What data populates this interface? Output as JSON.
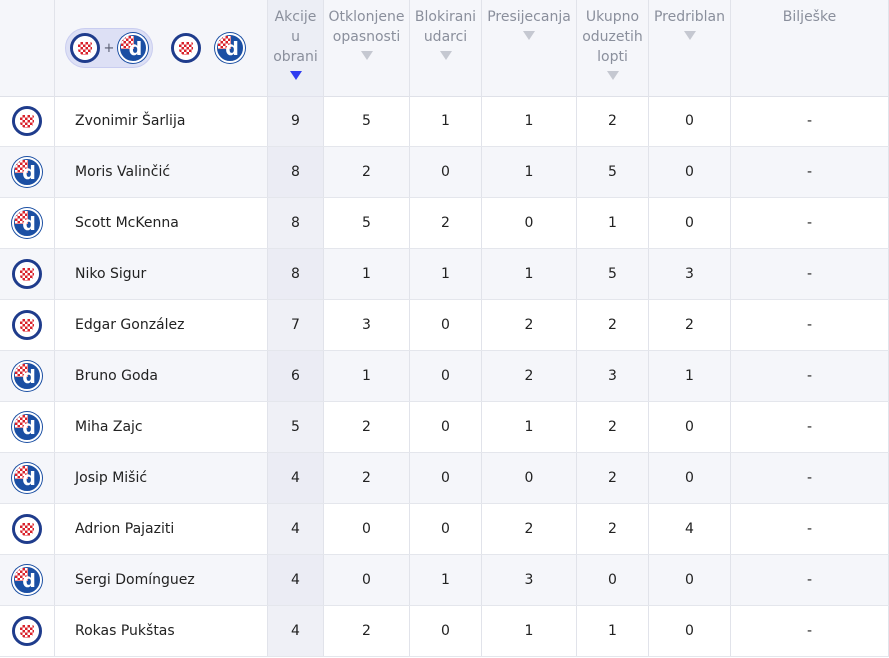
{
  "header": {
    "combined_filter_icons": [
      "hajduk-split-logo",
      "dinamo-zagreb-logo"
    ],
    "combined_plus": "+",
    "columns": [
      {
        "key": "akcije",
        "lines": [
          "Akcije",
          "u",
          "obrani"
        ],
        "sorted": true,
        "sort_dir": "desc"
      },
      {
        "key": "otklonjene",
        "lines": [
          "Otklonjene",
          "opasnosti"
        ],
        "sorted": false
      },
      {
        "key": "blokirani",
        "lines": [
          "Blokirani",
          "udarci"
        ],
        "sorted": false
      },
      {
        "key": "presijecanja",
        "lines": [
          "Presijecanja"
        ],
        "sorted": false
      },
      {
        "key": "oduzetih",
        "lines": [
          "Ukupno",
          "oduzetih",
          "lopti"
        ],
        "sorted": false
      },
      {
        "key": "predriblan",
        "lines": [
          "Predriblan"
        ],
        "sorted": false
      },
      {
        "key": "biljeske",
        "lines": [
          "Bilješke"
        ],
        "sorted": false
      }
    ]
  },
  "rows": [
    {
      "team": "hajduk",
      "name": "Zvonimir Šarlija",
      "akcije": "9",
      "otklonjene": "5",
      "blokirani": "1",
      "presijecanja": "1",
      "oduzetih": "2",
      "predriblan": "0",
      "biljeske": "-"
    },
    {
      "team": "dinamo",
      "name": "Moris Valinčić",
      "akcije": "8",
      "otklonjene": "2",
      "blokirani": "0",
      "presijecanja": "1",
      "oduzetih": "5",
      "predriblan": "0",
      "biljeske": "-"
    },
    {
      "team": "dinamo",
      "name": "Scott McKenna",
      "akcije": "8",
      "otklonjene": "5",
      "blokirani": "2",
      "presijecanja": "0",
      "oduzetih": "1",
      "predriblan": "0",
      "biljeske": "-"
    },
    {
      "team": "hajduk",
      "name": "Niko Sigur",
      "akcije": "8",
      "otklonjene": "1",
      "blokirani": "1",
      "presijecanja": "1",
      "oduzetih": "5",
      "predriblan": "3",
      "biljeske": "-"
    },
    {
      "team": "hajduk",
      "name": "Edgar González",
      "akcije": "7",
      "otklonjene": "3",
      "blokirani": "0",
      "presijecanja": "2",
      "oduzetih": "2",
      "predriblan": "2",
      "biljeske": "-"
    },
    {
      "team": "dinamo",
      "name": "Bruno Goda",
      "akcije": "6",
      "otklonjene": "1",
      "blokirani": "0",
      "presijecanja": "2",
      "oduzetih": "3",
      "predriblan": "1",
      "biljeske": "-"
    },
    {
      "team": "dinamo",
      "name": "Miha Zajc",
      "akcije": "5",
      "otklonjene": "2",
      "blokirani": "0",
      "presijecanja": "1",
      "oduzetih": "2",
      "predriblan": "0",
      "biljeske": "-"
    },
    {
      "team": "dinamo",
      "name": "Josip Mišić",
      "akcije": "4",
      "otklonjene": "2",
      "blokirani": "0",
      "presijecanja": "0",
      "oduzetih": "2",
      "predriblan": "0",
      "biljeske": "-"
    },
    {
      "team": "hajduk",
      "name": "Adrion Pajaziti",
      "akcije": "4",
      "otklonjene": "0",
      "blokirani": "0",
      "presijecanja": "2",
      "oduzetih": "2",
      "predriblan": "4",
      "biljeske": "-"
    },
    {
      "team": "dinamo",
      "name": "Sergi Domínguez",
      "akcije": "4",
      "otklonjene": "0",
      "blokirani": "1",
      "presijecanja": "3",
      "oduzetih": "0",
      "predriblan": "0",
      "biljeske": "-"
    },
    {
      "team": "hajduk",
      "name": "Rokas Pukštas",
      "akcije": "4",
      "otklonjene": "2",
      "blokirani": "0",
      "presijecanja": "1",
      "oduzetih": "1",
      "predriblan": "0",
      "biljeske": "-"
    }
  ]
}
